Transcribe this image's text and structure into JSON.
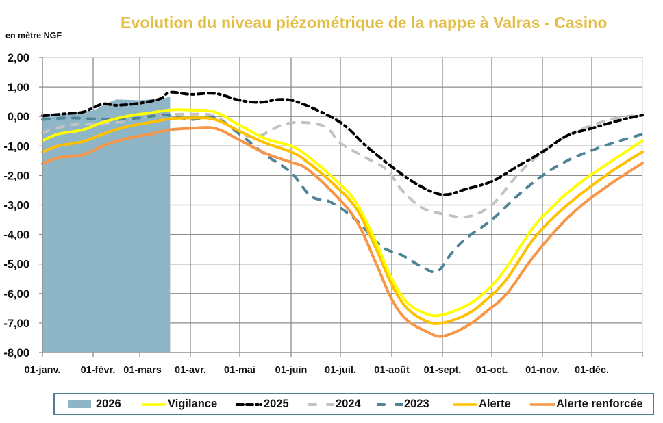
{
  "chart_data": {
    "type": "line",
    "title": "Evolution du niveau piézométrique de la nappe à Valras - Casino",
    "ylabel": "en mètre NGF",
    "xlabel": "",
    "ylim": [
      -8,
      2
    ],
    "xlim_months": [
      0,
      12
    ],
    "grid": true,
    "legend_position": "bottom",
    "y_ticks": [
      "2,00",
      "1,00",
      "0,00",
      "-1,00",
      "-2,00",
      "-3,00",
      "-4,00",
      "-5,00",
      "-6,00",
      "-7,00",
      "-8,00"
    ],
    "y_tick_values": [
      2,
      1,
      0,
      -1,
      -2,
      -3,
      -4,
      -5,
      -6,
      -7,
      -8
    ],
    "x_ticks": [
      "01-janv.",
      "01-févr.",
      "01-mars",
      "01-avr.",
      "01-mai",
      "01-juin",
      "01-juil.",
      "01-août",
      "01-sept.",
      "01-oct.",
      "01-nov.",
      "01-déc."
    ],
    "x_unit_note": "x values are in months since 01-janv. (0 = 01-janv., 12 = 31-déc.)",
    "series": [
      {
        "name": "2026",
        "kind": "area",
        "color": "#8eb6c7",
        "x": [
          0,
          0.5,
          1,
          1.3,
          1.5,
          2.0,
          2.5,
          2.6
        ],
        "values": [
          0.05,
          0.12,
          0.2,
          0.45,
          0.58,
          0.55,
          0.62,
          0.68
        ]
      },
      {
        "name": "Vigilance",
        "kind": "line",
        "dash": "solid",
        "color": "#ffff00",
        "x": [
          0,
          0.3,
          0.8,
          1.2,
          1.7,
          2.2,
          2.6,
          3.0,
          3.5,
          4.0,
          4.5,
          5.0,
          5.3,
          5.8,
          6.3,
          6.7,
          7.0,
          7.3,
          7.7,
          8.0,
          8.5,
          8.9,
          9.3,
          9.8,
          10.3,
          10.8,
          11.4,
          12.0
        ],
        "values": [
          -0.82,
          -0.6,
          -0.45,
          -0.2,
          0.0,
          0.12,
          0.22,
          0.22,
          0.15,
          -0.3,
          -0.75,
          -1.0,
          -1.3,
          -2.0,
          -2.9,
          -4.3,
          -5.5,
          -6.3,
          -6.7,
          -6.72,
          -6.4,
          -5.9,
          -5.1,
          -3.8,
          -2.9,
          -2.2,
          -1.5,
          -0.82
        ]
      },
      {
        "name": "2025",
        "kind": "line",
        "dash": "dash-dot",
        "color": "#000000",
        "x": [
          0,
          0.5,
          0.8,
          1.2,
          1.5,
          2.0,
          2.4,
          2.6,
          3.0,
          3.5,
          4.0,
          4.4,
          4.8,
          5.2,
          6.0,
          6.5,
          7.0,
          7.5,
          8.0,
          8.5,
          9.0,
          9.5,
          10.0,
          10.5,
          11.0,
          11.5,
          12.0
        ],
        "values": [
          0.02,
          0.1,
          0.15,
          0.42,
          0.38,
          0.45,
          0.6,
          0.82,
          0.75,
          0.78,
          0.55,
          0.48,
          0.58,
          0.45,
          -0.2,
          -1.0,
          -1.7,
          -2.3,
          -2.65,
          -2.45,
          -2.2,
          -1.7,
          -1.2,
          -0.65,
          -0.4,
          -0.15,
          0.05
        ]
      },
      {
        "name": "2024",
        "kind": "line",
        "dash": "dashed",
        "color": "#c2c2c2",
        "x": [
          0,
          0.5,
          1.0,
          1.5,
          2.0,
          2.5,
          3.0,
          3.5,
          3.9,
          4.3,
          4.8,
          5.2,
          5.7,
          6.0,
          6.5,
          6.9,
          7.2,
          7.6,
          8.0,
          8.5,
          9.0,
          9.5,
          10.0,
          10.5,
          11.0,
          11.5,
          12.0
        ],
        "values": [
          -0.55,
          -0.3,
          -0.25,
          -0.2,
          -0.05,
          0.05,
          0.08,
          0.02,
          -0.45,
          -0.7,
          -0.3,
          -0.2,
          -0.35,
          -0.9,
          -1.4,
          -1.8,
          -2.5,
          -3.1,
          -3.3,
          -3.4,
          -3.0,
          -2.0,
          -1.2,
          -0.65,
          -0.3,
          -0.05,
          0.05
        ]
      },
      {
        "name": "2023",
        "kind": "line",
        "dash": "dashed",
        "color": "#4e8496",
        "x": [
          0,
          0.5,
          1.0,
          1.5,
          2.0,
          2.5,
          3.0,
          3.5,
          4.0,
          4.5,
          5.0,
          5.4,
          5.8,
          6.3,
          6.8,
          7.2,
          7.6,
          7.9,
          8.2,
          8.5,
          9.0,
          9.5,
          10.0,
          10.5,
          11.0,
          11.5,
          12.0
        ],
        "values": [
          -0.1,
          -0.05,
          -0.08,
          -0.1,
          -0.05,
          0.05,
          -0.1,
          -0.05,
          -0.6,
          -1.3,
          -1.9,
          -2.7,
          -2.9,
          -3.5,
          -4.4,
          -4.7,
          -5.1,
          -5.25,
          -4.6,
          -4.1,
          -3.5,
          -2.7,
          -2.0,
          -1.5,
          -1.15,
          -0.85,
          -0.6
        ]
      },
      {
        "name": "Alerte",
        "kind": "line",
        "dash": "solid",
        "color": "#ffc000",
        "x": [
          0,
          0.3,
          0.8,
          1.2,
          1.7,
          2.2,
          2.6,
          3.0,
          3.5,
          4.0,
          4.5,
          5.0,
          5.3,
          5.8,
          6.3,
          6.7,
          7.0,
          7.3,
          7.7,
          8.0,
          8.5,
          8.9,
          9.3,
          9.8,
          10.3,
          10.8,
          11.4,
          12.0
        ],
        "values": [
          -1.2,
          -1.0,
          -0.85,
          -0.6,
          -0.35,
          -0.2,
          -0.08,
          -0.05,
          -0.1,
          -0.5,
          -0.9,
          -1.2,
          -1.5,
          -2.2,
          -3.1,
          -4.5,
          -5.7,
          -6.5,
          -6.95,
          -7.0,
          -6.7,
          -6.2,
          -5.5,
          -4.2,
          -3.3,
          -2.6,
          -1.85,
          -1.2
        ]
      },
      {
        "name": "Alerte renforcée",
        "kind": "line",
        "dash": "solid",
        "color": "#f79646",
        "x": [
          0,
          0.3,
          0.8,
          1.2,
          1.7,
          2.2,
          2.6,
          3.0,
          3.5,
          4.0,
          4.5,
          5.0,
          5.3,
          5.8,
          6.3,
          6.7,
          7.0,
          7.3,
          7.7,
          8.0,
          8.5,
          8.9,
          9.3,
          9.8,
          10.3,
          10.8,
          11.4,
          12.0
        ],
        "values": [
          -1.6,
          -1.4,
          -1.3,
          -1.0,
          -0.75,
          -0.6,
          -0.45,
          -0.4,
          -0.4,
          -0.8,
          -1.25,
          -1.55,
          -1.75,
          -2.5,
          -3.5,
          -5.0,
          -6.2,
          -6.9,
          -7.3,
          -7.45,
          -7.1,
          -6.6,
          -6.0,
          -4.8,
          -3.8,
          -3.0,
          -2.25,
          -1.58
        ]
      }
    ]
  },
  "legend": {
    "items": [
      {
        "label": "2026"
      },
      {
        "label": "Vigilance"
      },
      {
        "label": "2025"
      },
      {
        "label": "2024"
      },
      {
        "label": "2023"
      },
      {
        "label": "Alerte"
      },
      {
        "label": "Alerte renforcée"
      }
    ]
  }
}
